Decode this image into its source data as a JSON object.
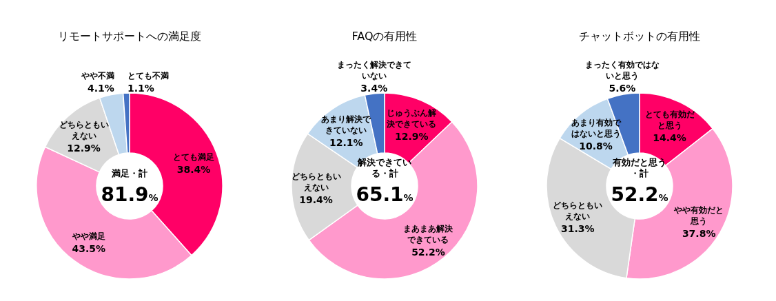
{
  "chart_data": [
    {
      "type": "donut",
      "title": "リモートサポートへの満足度",
      "categories": [
        "とても満足",
        "やや満足",
        "どちらともいえない",
        "やや不満",
        "とても不満"
      ],
      "values": [
        38.4,
        43.5,
        12.9,
        4.1,
        1.1
      ],
      "value_labels": [
        "38.4%",
        "43.5%",
        "12.9%",
        "4.1%",
        "1.1%"
      ],
      "colors": [
        "#ff0066",
        "#ff99cc",
        "#d9d9d9",
        "#bdd7ee",
        "#4472c4"
      ],
      "annotations": [
        "満足・計",
        "81.9%"
      ]
    },
    {
      "type": "donut",
      "title": "FAQの有用性",
      "categories": [
        "じゅうぶん解決できている",
        "まあまあ解決できている",
        "どちらともいえない",
        "あまり解決できていない",
        "まったく解決できていない"
      ],
      "values": [
        12.9,
        52.2,
        19.4,
        12.1,
        3.4
      ],
      "value_labels": [
        "12.9%",
        "52.2%",
        "19.4%",
        "12.1%",
        "3.4%"
      ],
      "colors": [
        "#ff0066",
        "#ff99cc",
        "#d9d9d9",
        "#bdd7ee",
        "#4472c4"
      ],
      "annotations": [
        "解決できている・計",
        "65.1%"
      ]
    },
    {
      "type": "donut",
      "title": "チャットボットの有用性",
      "categories": [
        "とても有効だと思う",
        "やや有効だと思う",
        "どちらともいえない",
        "あまり有効ではないと思う",
        "まったく有効ではないと思う"
      ],
      "values": [
        14.4,
        37.8,
        31.3,
        10.8,
        5.6
      ],
      "value_labels": [
        "14.4%",
        "37.8%",
        "31.3%",
        "10.8%",
        "5.6%"
      ],
      "colors": [
        "#ff0066",
        "#ff99cc",
        "#d9d9d9",
        "#bdd7ee",
        "#4472c4"
      ],
      "annotations": [
        "有効だと思う・計",
        "52.2%"
      ]
    }
  ]
}
